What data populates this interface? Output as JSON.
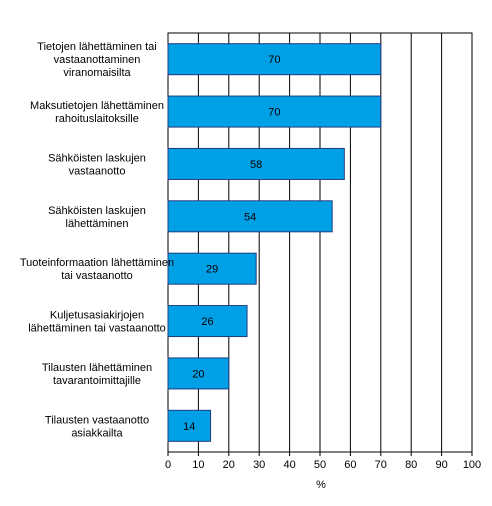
{
  "chart_data": {
    "type": "bar",
    "orientation": "horizontal",
    "categories": [
      [
        "Tietojen lähettäminen tai",
        "vastaanottaminen",
        "viranomaisilta"
      ],
      [
        "Maksutietojen lähettäminen",
        "rahoituslaitoksille"
      ],
      [
        "Sähköisten laskujen",
        "vastaanotto"
      ],
      [
        "Sähköisten laskujen",
        "lähettäminen"
      ],
      [
        "Tuoteinformaation lähettäminen",
        "tai vastaanotto"
      ],
      [
        "Kuljetusasiakirjojen",
        "lähettäminen tai vastaanotto"
      ],
      [
        "Tilausten lähettäminen",
        "tavarantoimittajille"
      ],
      [
        "Tilausten vastaanotto",
        "asiakkailta"
      ]
    ],
    "values": [
      70,
      70,
      58,
      54,
      29,
      26,
      20,
      14
    ],
    "data_labels": [
      "70",
      "70",
      "58",
      "54",
      "29",
      "26",
      "20",
      "14"
    ],
    "xlabel": "%",
    "ylabel": "",
    "xlim": [
      0,
      100
    ],
    "ticks": [
      "0",
      "10",
      "20",
      "30",
      "40",
      "50",
      "60",
      "70",
      "80",
      "90",
      "100"
    ],
    "grid": "vertical lines",
    "legend": "none",
    "bar_color": "#00a0e6",
    "bar_border_color": "#1f3c80",
    "grid_color": "#000000"
  }
}
